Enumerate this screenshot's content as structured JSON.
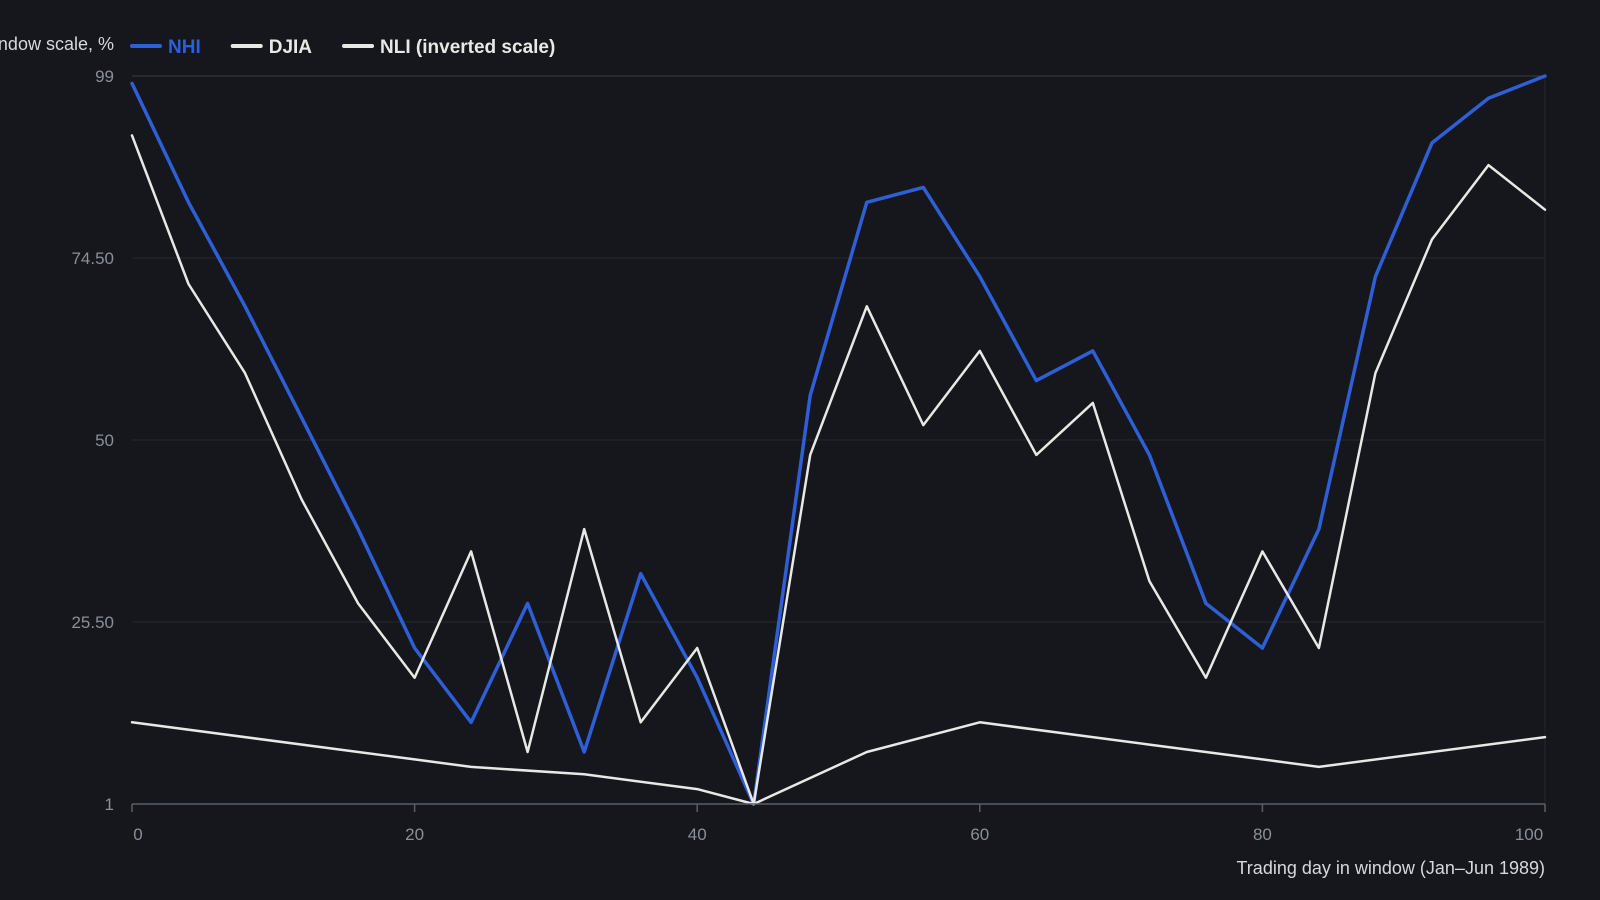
{
  "chart_data": {
    "type": "line",
    "title": "",
    "xlabel": "Trading day in window (Jan–Jun 1989)",
    "ylabel": "Window scale, %",
    "xlim": [
      0,
      100
    ],
    "ylim": [
      1,
      99
    ],
    "x_ticks": [
      0,
      20,
      40,
      60,
      80,
      100
    ],
    "x_tick_labels": [
      "0",
      "20",
      "40",
      "60",
      "80",
      "100"
    ],
    "y_ticks": [
      1,
      25.5,
      50,
      74.5,
      99
    ],
    "y_tick_labels": [
      "1",
      "25.50",
      "50",
      "74.50",
      "99"
    ],
    "grid": "horizontal",
    "legend_position": "top-left",
    "x": [
      0,
      4,
      8,
      12,
      16,
      20,
      24,
      28,
      32,
      36,
      40,
      44,
      48,
      52,
      56,
      60,
      64,
      68,
      72,
      76,
      80,
      84,
      88,
      92,
      96,
      100
    ],
    "series": [
      {
        "name": "NHI",
        "color": "#2f5fd6",
        "width": 3.5,
        "values": [
          98,
          82,
          68,
          53,
          38,
          22,
          12,
          28,
          8,
          32,
          18,
          1,
          56,
          82,
          84,
          72,
          58,
          62,
          48,
          28,
          22,
          38,
          72,
          90,
          96,
          99
        ]
      },
      {
        "name": "DJIA",
        "color": "#e8e8e6",
        "width": 2.5,
        "values": [
          91,
          71,
          59,
          42,
          28,
          18,
          35,
          8,
          38,
          12,
          22,
          1,
          48,
          68,
          52,
          62,
          48,
          55,
          31,
          18,
          35,
          22,
          59,
          77,
          87,
          81
        ]
      },
      {
        "name": "NLI (inverted scale)",
        "color": "#e8e8e6",
        "width": 2.5,
        "x": [
          0,
          20,
          24,
          32,
          40,
          44,
          52,
          60,
          72,
          80,
          84,
          100
        ],
        "values": [
          12,
          7,
          6,
          5,
          3,
          1,
          8,
          12,
          9,
          7,
          6,
          10
        ]
      }
    ]
  }
}
